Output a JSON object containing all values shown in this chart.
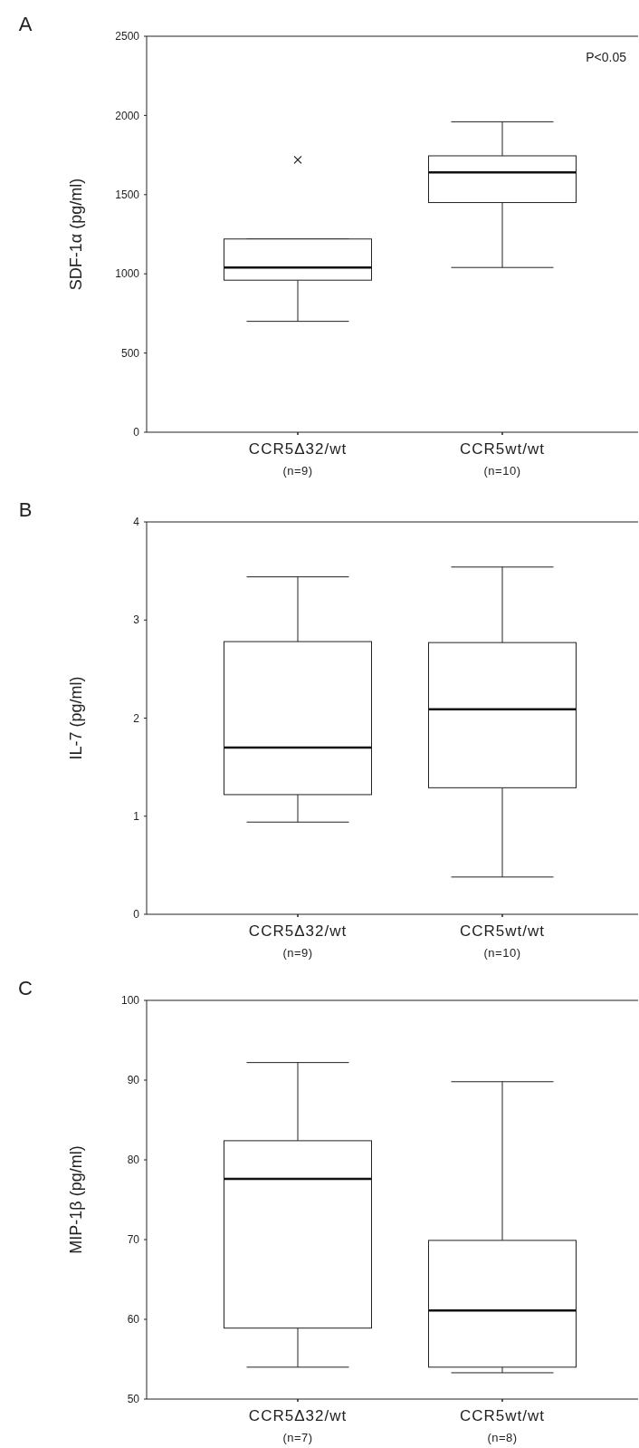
{
  "chart_data": [
    {
      "type": "box",
      "title": "A",
      "ylabel": "SDF-1α (pg/ml)",
      "categories": [
        "CCR5Δ32/wt\n(n=9)",
        "CCR5wt/wt\n(n=10)"
      ],
      "ylim": [
        0,
        2500
      ],
      "yticks": [
        0,
        500,
        1000,
        1500,
        2000,
        2500
      ],
      "annotations": [
        "P<0.05"
      ],
      "marker": "cross",
      "boxes": [
        {
          "low": 700,
          "q1": 960,
          "median": 1040,
          "q3": 1220,
          "high": 1220,
          "outliers": [
            1720
          ]
        },
        {
          "low": 1040,
          "q1": 1450,
          "median": 1640,
          "q3": 1745,
          "high": 1960
        }
      ]
    },
    {
      "type": "box",
      "title": "B",
      "ylabel": "IL-7 (pg/ml)",
      "categories": [
        "CCR5Δ32/wt\n(n=9)",
        "CCR5wt/wt\n(n=10)"
      ],
      "ylim": [
        0,
        4
      ],
      "yticks": [
        0,
        1,
        2,
        3,
        4
      ],
      "boxes": [
        {
          "low": 0.94,
          "q1": 1.22,
          "median": 1.7,
          "q3": 2.78,
          "high": 3.44
        },
        {
          "low": 0.38,
          "q1": 1.29,
          "median": 2.09,
          "q3": 2.77,
          "high": 3.54
        }
      ]
    },
    {
      "type": "box",
      "title": "C",
      "ylabel": "MIP-1β (pg/ml)",
      "categories": [
        "CCR5Δ32/wt\n(n=7)",
        "CCR5wt/wt\n(n=8)"
      ],
      "ylim": [
        50,
        100
      ],
      "yticks": [
        50,
        60,
        70,
        80,
        90,
        100
      ],
      "boxes": [
        {
          "low": 54,
          "q1": 58.9,
          "median": 77.6,
          "q3": 82.4,
          "high": 92.2
        },
        {
          "low": 53.3,
          "q1": 54,
          "median": 61.1,
          "q3": 69.9,
          "high": 89.8
        }
      ]
    }
  ]
}
